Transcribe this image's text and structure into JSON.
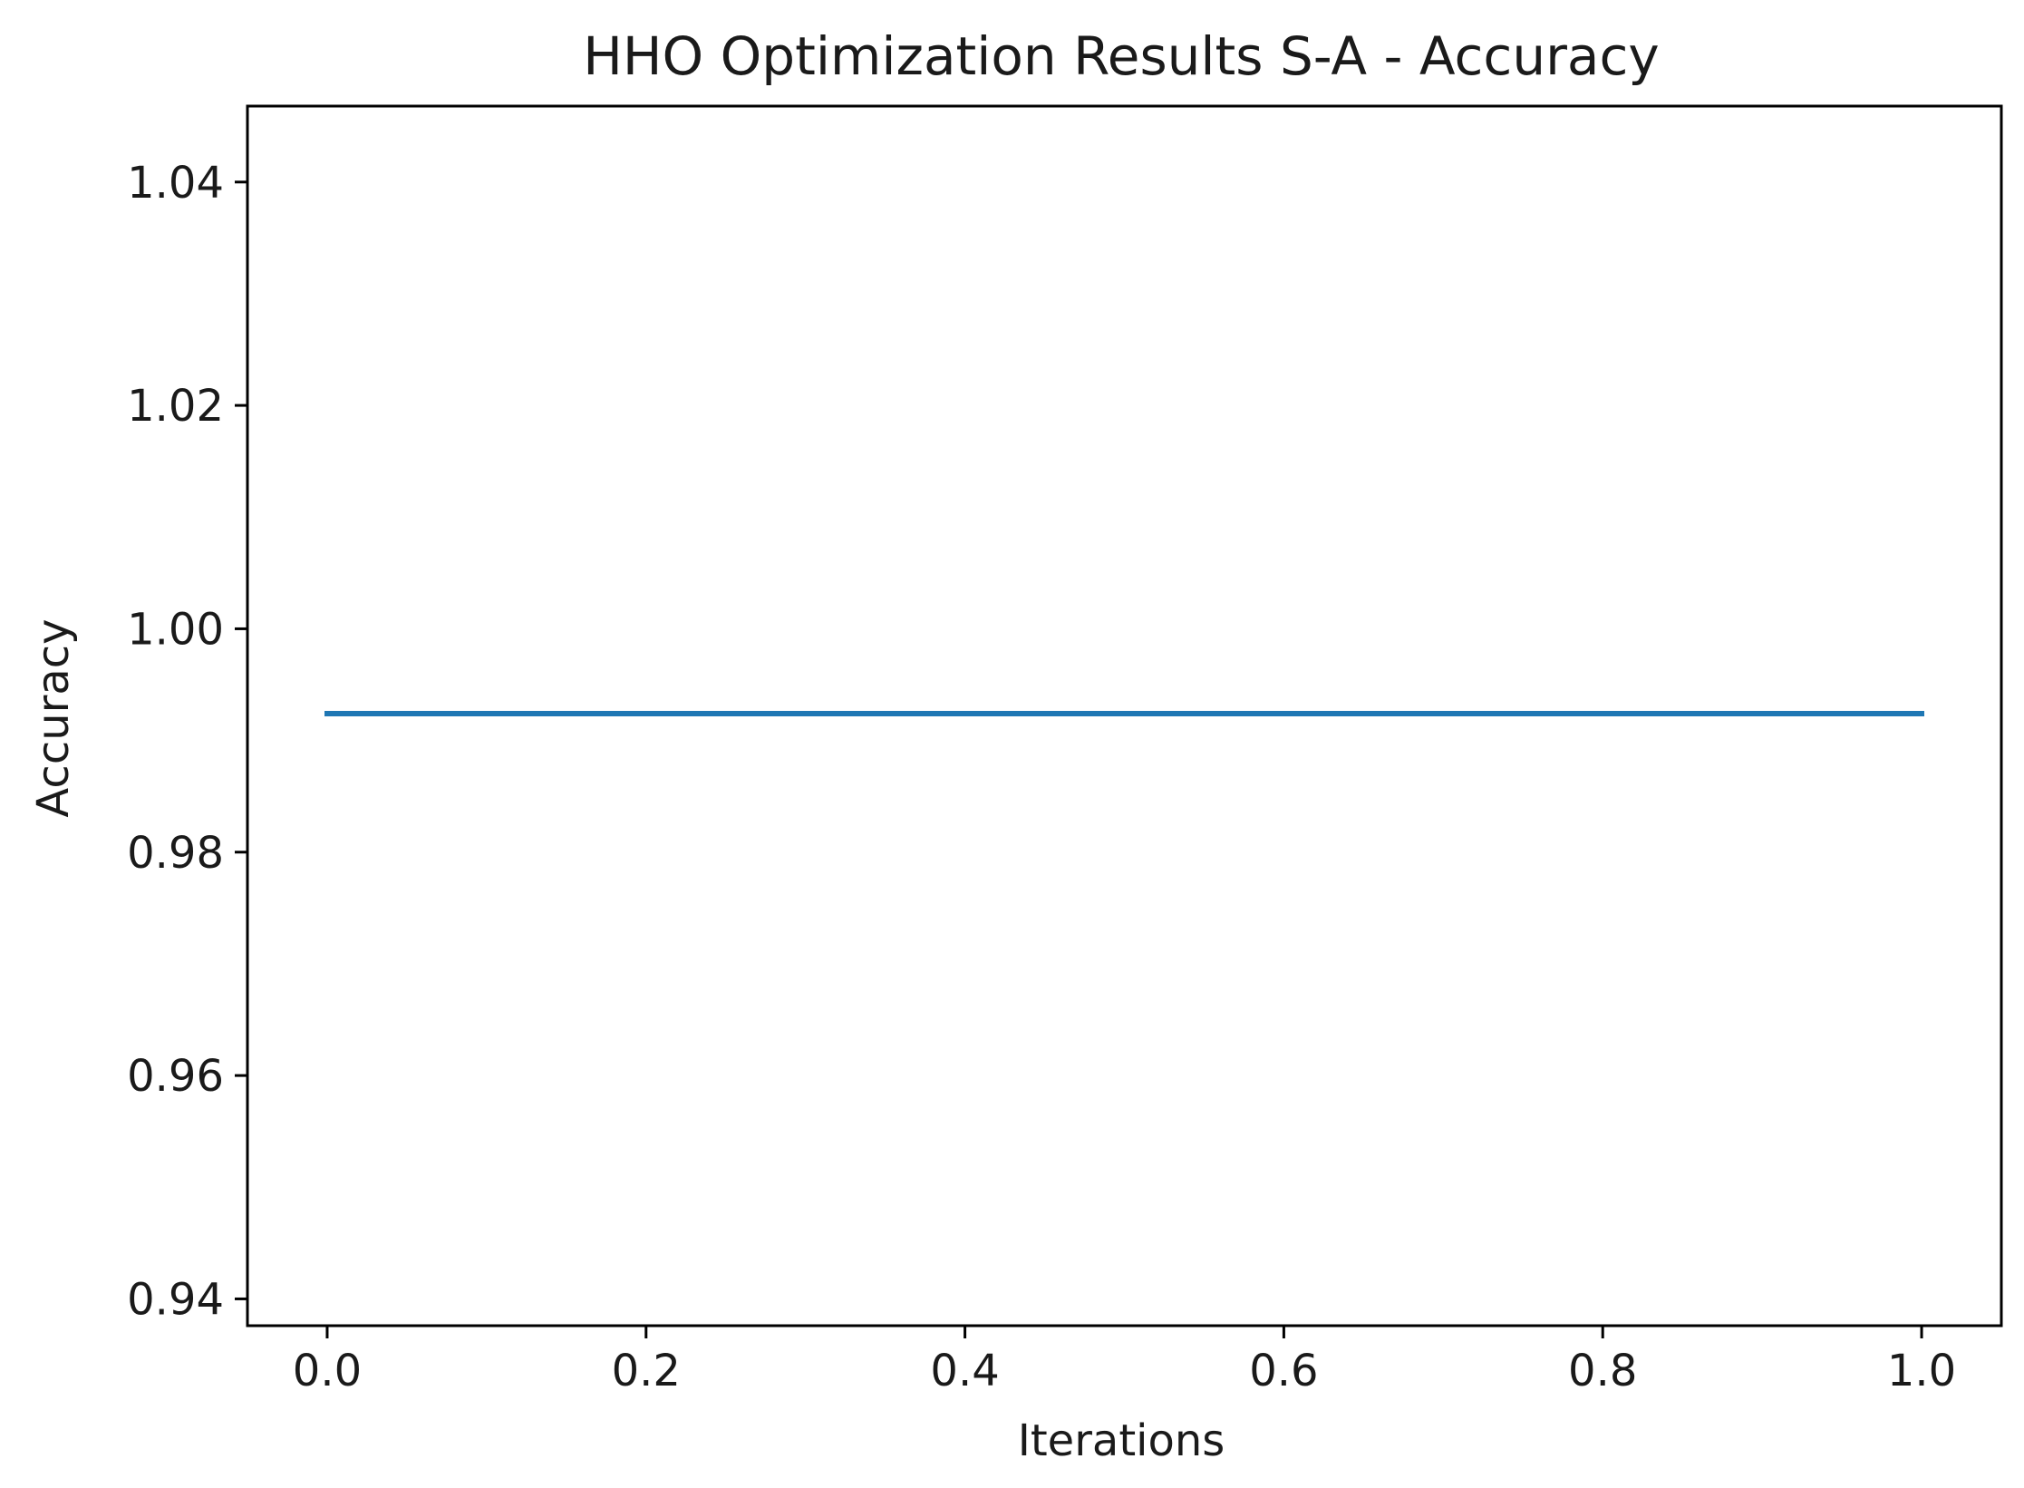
{
  "chart_data": {
    "type": "line",
    "title": "HHO Optimization Results S-A - Accuracy",
    "xlabel": "Iterations",
    "ylabel": "Accuracy",
    "xlim": [
      -0.05,
      1.05
    ],
    "ylim": [
      0.9376,
      1.0468
    ],
    "xticks": [
      0.0,
      0.2,
      0.4,
      0.6,
      0.8,
      1.0
    ],
    "xtick_labels": [
      "0.0",
      "0.2",
      "0.4",
      "0.6",
      "0.8",
      "1.0"
    ],
    "yticks": [
      0.94,
      0.96,
      0.98,
      1.0,
      1.02,
      1.04
    ],
    "ytick_labels": [
      "0.94",
      "0.96",
      "0.98",
      "1.00",
      "1.02",
      "1.04"
    ],
    "grid": false,
    "legend": "none",
    "series": [
      {
        "color": "#1f77b4",
        "x": [
          0.0,
          1.0
        ],
        "y": [
          0.9924,
          0.9924
        ]
      }
    ]
  }
}
